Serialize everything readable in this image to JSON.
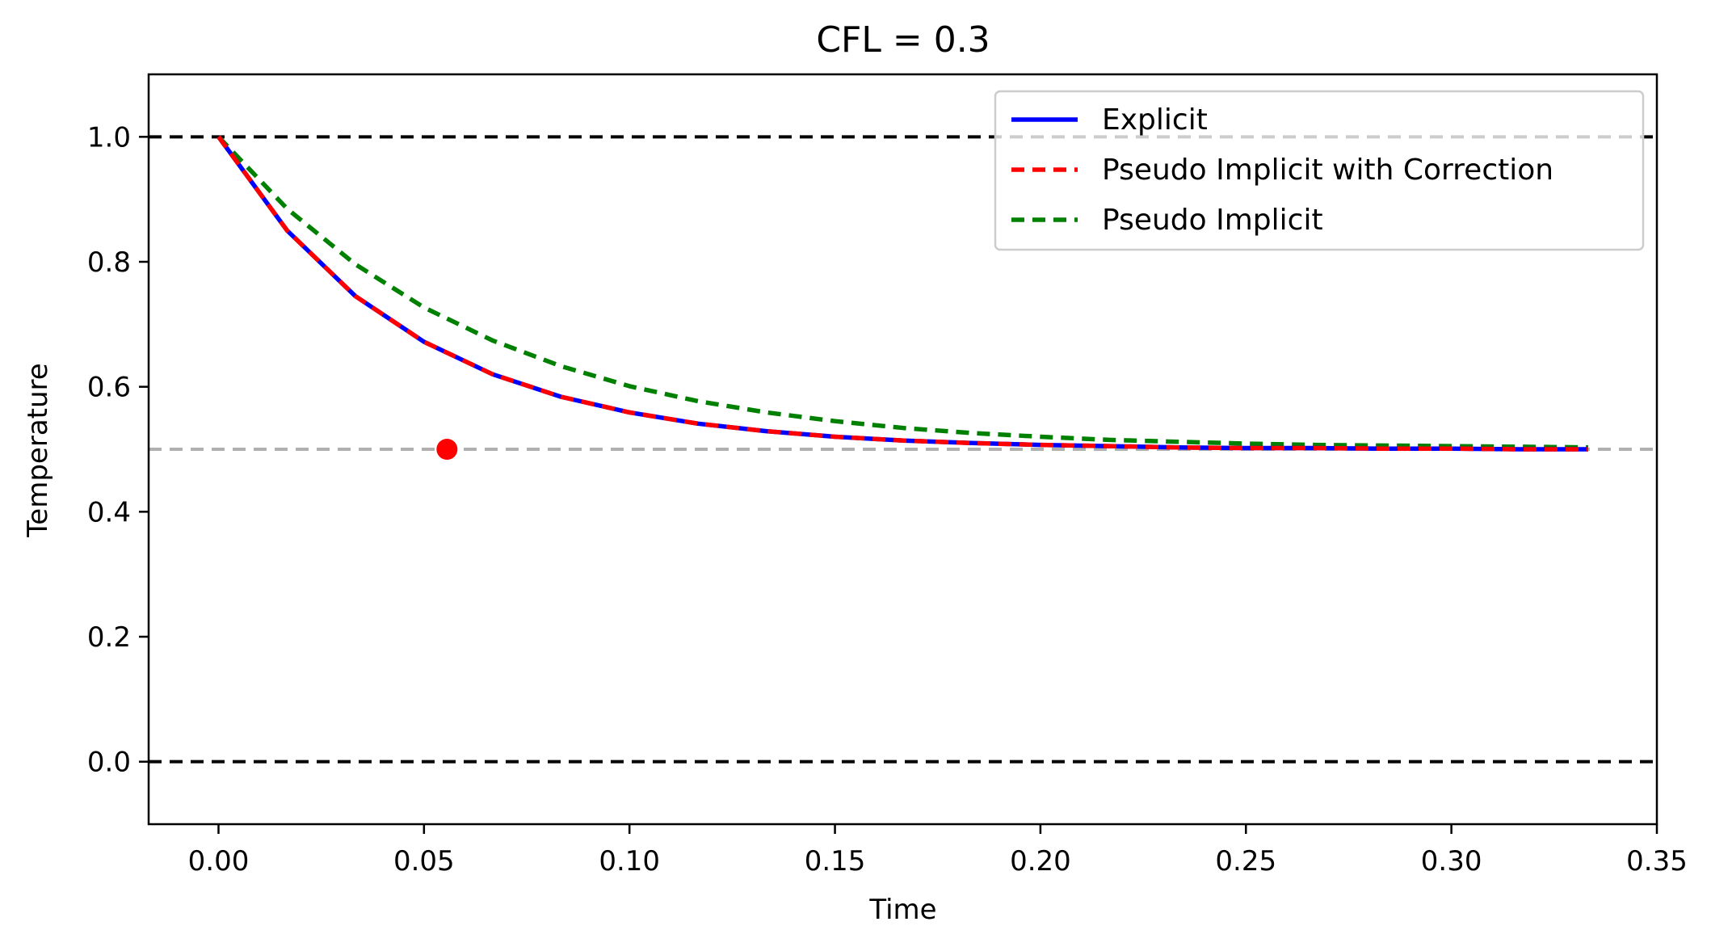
{
  "chart_data": {
    "type": "line",
    "title": "CFL = 0.3",
    "xlabel": "Time",
    "ylabel": "Temperature",
    "xlim": [
      -0.017,
      0.35
    ],
    "ylim": [
      -0.1,
      1.1
    ],
    "xticks": [
      0.0,
      0.05,
      0.1,
      0.15,
      0.2,
      0.25,
      0.3,
      0.35
    ],
    "xtick_labels": [
      "0.00",
      "0.05",
      "0.10",
      "0.15",
      "0.20",
      "0.25",
      "0.30",
      "0.35"
    ],
    "yticks": [
      0.0,
      0.2,
      0.4,
      0.6,
      0.8,
      1.0
    ],
    "ytick_labels": [
      "0.0",
      "0.2",
      "0.4",
      "0.6",
      "0.8",
      "1.0"
    ],
    "grid": false,
    "legend_position": "top-right",
    "x": [
      0.0,
      0.0167,
      0.0333,
      0.05,
      0.0667,
      0.0833,
      0.1,
      0.1167,
      0.1333,
      0.15,
      0.1667,
      0.1833,
      0.2,
      0.2167,
      0.2333,
      0.25,
      0.2667,
      0.2833,
      0.3,
      0.3167,
      0.3333
    ],
    "series": [
      {
        "name": "Explicit",
        "color": "#0000ff",
        "style": "solid",
        "values": [
          1.0,
          0.85,
          0.745,
          0.672,
          0.62,
          0.584,
          0.559,
          0.541,
          0.529,
          0.52,
          0.514,
          0.51,
          0.507,
          0.505,
          0.503,
          0.502,
          0.502,
          0.501,
          0.501,
          0.5,
          0.5
        ]
      },
      {
        "name": "Pseudo Implicit with Correction",
        "color": "#ff0000",
        "style": "dashed",
        "values": [
          1.0,
          0.85,
          0.745,
          0.672,
          0.62,
          0.584,
          0.559,
          0.541,
          0.529,
          0.52,
          0.514,
          0.51,
          0.507,
          0.505,
          0.503,
          0.502,
          0.502,
          0.501,
          0.501,
          0.5,
          0.5
        ]
      },
      {
        "name": "Pseudo Implicit",
        "color": "#008000",
        "style": "dashed",
        "values": [
          1.0,
          0.885,
          0.796,
          0.727,
          0.674,
          0.633,
          0.601,
          0.577,
          0.559,
          0.545,
          0.534,
          0.526,
          0.52,
          0.515,
          0.512,
          0.509,
          0.507,
          0.506,
          0.505,
          0.504,
          0.503
        ]
      }
    ],
    "reference_lines": [
      {
        "y": 1.0,
        "color": "#000000",
        "style": "dashed"
      },
      {
        "y": 0.0,
        "color": "#000000",
        "style": "dashed"
      },
      {
        "y": 0.5,
        "color": "#b0b0b0",
        "style": "dashed"
      }
    ],
    "marker": {
      "x": 0.0556,
      "y": 0.5,
      "color": "#ff0000"
    }
  }
}
